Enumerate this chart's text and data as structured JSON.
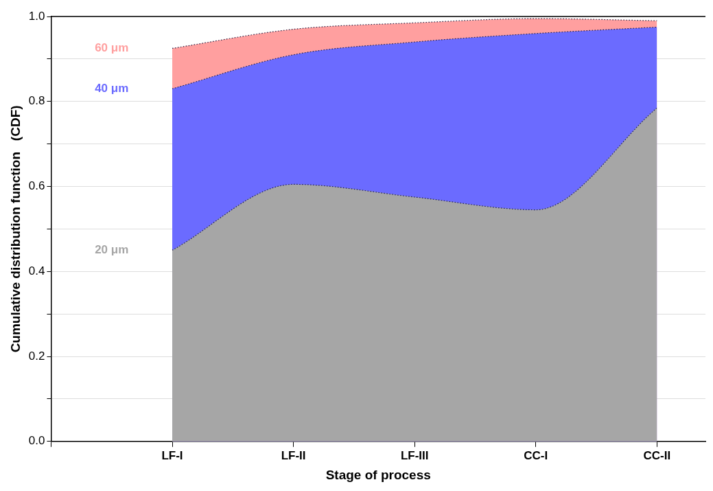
{
  "chart_data": {
    "type": "area",
    "xlabel": "Stage of process",
    "ylabel": "Cumulative distribution function   (CDF)",
    "categories": [
      null,
      "LF-I",
      "LF-II",
      "LF-III",
      "CC-I",
      "CC-II"
    ],
    "ylim": [
      0,
      1
    ],
    "yticks": [
      {
        "value": 0,
        "label": "0.0"
      },
      {
        "value": 0.1,
        "label": null
      },
      0.2,
      {
        "value": 0.3,
        "label": null
      },
      0.4,
      {
        "value": 0.5,
        "label": null
      },
      0.6,
      {
        "value": 0.7,
        "label": null
      },
      0.8,
      {
        "value": 0.9,
        "label": null
      },
      {
        "value": 1,
        "label": "1.0"
      }
    ],
    "grid": "y",
    "line_style": "dotted",
    "series": [
      {
        "name": "60 μm",
        "color": "#ff9f9f",
        "values": [
          null,
          0.925,
          0.97,
          0.985,
          0.995,
          0.99
        ]
      },
      {
        "name": "40 μm",
        "color": "#6b6bff",
        "values": [
          null,
          0.83,
          0.91,
          0.94,
          0.96,
          0.975
        ]
      },
      {
        "name": "20 μm",
        "color": "#a6a6a6",
        "values": [
          null,
          0.45,
          0.605,
          0.575,
          0.545,
          0.785
        ]
      }
    ]
  }
}
